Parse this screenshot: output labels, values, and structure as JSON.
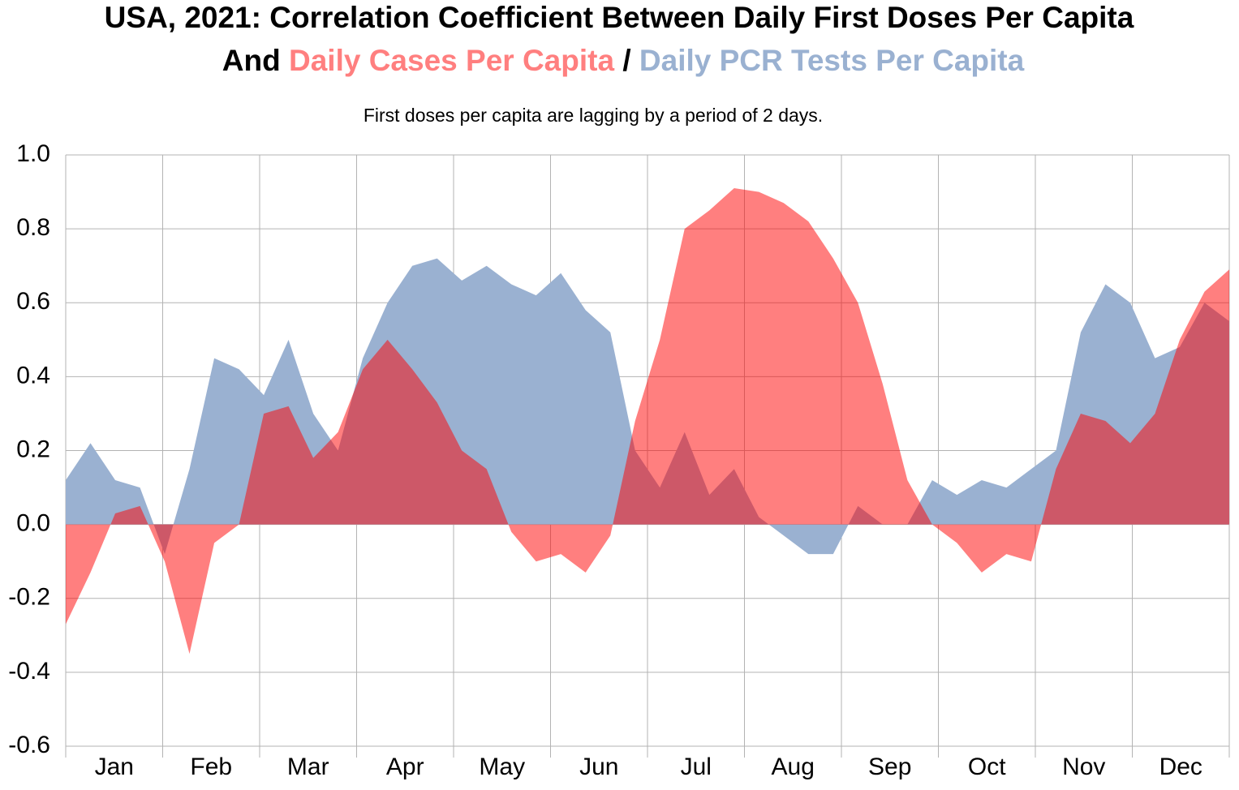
{
  "chart_data": {
    "type": "area",
    "title": "USA, 2021: Correlation Coefficient Between Daily First Doses Per Capita",
    "title_connector": "And",
    "title_separator": "/",
    "subtitle": "First doses per capita are lagging by a period of 2 days.",
    "categories": [
      "Jan",
      null,
      null,
      null,
      "Feb",
      null,
      null,
      null,
      "Mar",
      null,
      null,
      null,
      "Apr",
      null,
      null,
      null,
      "May",
      null,
      null,
      null,
      "Jun",
      null,
      null,
      null,
      "Jul",
      null,
      null,
      null,
      "Aug",
      null,
      null,
      null,
      "Sep",
      null,
      null,
      null,
      "Oct",
      null,
      null,
      null,
      "Nov",
      null,
      null,
      null,
      "Dec",
      null,
      null,
      null
    ],
    "series": [
      {
        "name": "Daily PCR Tests Per Capita",
        "color": "#9ab1d1",
        "values": [
          0.12,
          0.22,
          0.12,
          0.1,
          -0.08,
          0.15,
          0.45,
          0.42,
          0.35,
          0.5,
          0.3,
          0.2,
          0.45,
          0.6,
          0.7,
          0.72,
          0.66,
          0.7,
          0.65,
          0.62,
          0.68,
          0.58,
          0.52,
          0.2,
          0.1,
          0.25,
          0.08,
          0.15,
          0.02,
          -0.03,
          -0.08,
          -0.08,
          0.05,
          0.0,
          0.0,
          0.12,
          0.08,
          0.12,
          0.1,
          0.15,
          0.2,
          0.52,
          0.65,
          0.6,
          0.45,
          0.48,
          0.6,
          0.55
        ]
      },
      {
        "name": "Daily Cases Per Capita",
        "color": "rgba(255,0,0,0.5)",
        "values": [
          -0.27,
          -0.13,
          0.03,
          0.05,
          -0.1,
          -0.35,
          -0.05,
          0.0,
          0.3,
          0.32,
          0.18,
          0.25,
          0.42,
          0.5,
          0.42,
          0.33,
          0.2,
          0.15,
          -0.02,
          -0.1,
          -0.08,
          -0.13,
          -0.03,
          0.28,
          0.5,
          0.8,
          0.85,
          0.91,
          0.9,
          0.87,
          0.82,
          0.72,
          0.6,
          0.38,
          0.12,
          0.0,
          -0.05,
          -0.13,
          -0.08,
          -0.1,
          0.15,
          0.3,
          0.28,
          0.22,
          0.3,
          0.5,
          0.63,
          0.69
        ]
      }
    ],
    "ylim": [
      -0.6,
      1.0
    ],
    "yticks": [
      {
        "value": 1.0,
        "label": "1.0"
      },
      0.8,
      0.6,
      0.4,
      0.2,
      {
        "value": 0.0,
        "label": "0.0"
      },
      -0.2,
      -0.4,
      -0.6
    ],
    "grid": true
  }
}
